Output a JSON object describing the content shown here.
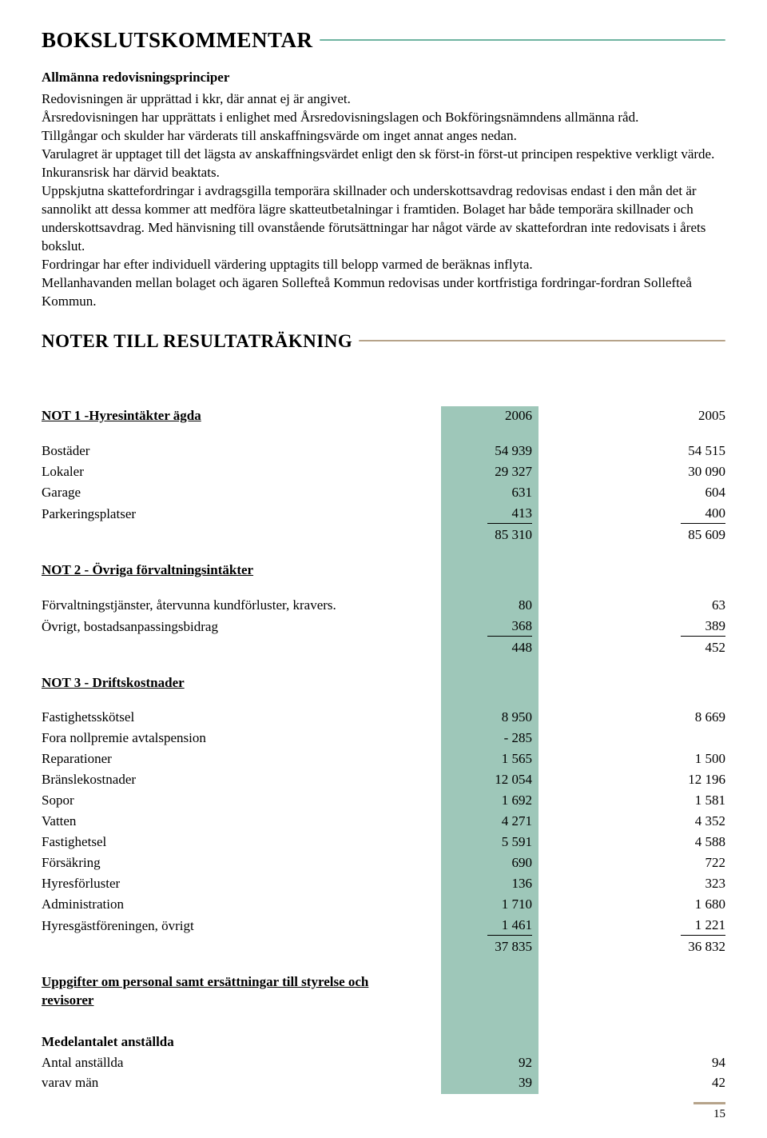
{
  "colors": {
    "teal_bar": "#9ec7b9",
    "teal_rule": "#6fb3a1",
    "brown_rule": "#b6a38a",
    "text": "#000000",
    "bg": "#ffffff"
  },
  "typography": {
    "body_fontsize": 17,
    "heading_main_fontsize": 27,
    "heading_sect_fontsize": 23
  },
  "heading_main": "BOKSLUTSKOMMENTAR",
  "subheading": "Allmänna redovisningsprinciper",
  "body_paragraph": "Redovisningen är upprättad i kkr, där annat ej är angivet.\nÅrsredovisningen har upprättats i enlighet med Årsredovisningslagen och Bokföringsnämndens allmänna råd.\nTillgångar och skulder har värderats till anskaffningsvärde om inget annat anges nedan.\nVarulagret är upptaget till det lägsta av anskaffningsvärdet enligt den sk först-in först-ut principen respektive verkligt värde. Inkuransrisk har därvid beaktats.\nUppskjutna skattefordringar i avdragsgilla temporära skillnader och underskottsavdrag redovisas endast i den mån det är sannolikt att dessa kommer att medföra lägre skatteutbetalningar i framtiden. Bolaget har både temporära skillnader och underskottsavdrag. Med hänvisning till ovanstående förutsättningar har något värde av skattefordran inte redovisats i årets bokslut.\nFordringar har efter individuell värdering upptagits till belopp varmed de beräknas inflyta.\nMellanhavanden mellan bolaget och ägaren Sollefteå Kommun redovisas under kortfristiga fordringar-fordran Sollefteå Kommun.",
  "heading_noter": "NOTER TILL RESULTATRÄKNING",
  "not1": {
    "title": "NOT 1 -Hyresintäkter ägda",
    "col1": "2006",
    "col2": "2005",
    "rows": [
      {
        "label": "Bostäder",
        "c1": "54 939",
        "c2": "54 515"
      },
      {
        "label": "Lokaler",
        "c1": "29 327",
        "c2": "30 090"
      },
      {
        "label": "Garage",
        "c1": "631",
        "c2": "604"
      },
      {
        "label": "Parkeringsplatser",
        "c1": "413",
        "c2": "400",
        "rule": true
      }
    ],
    "total": {
      "c1": "85 310",
      "c2": "85 609"
    }
  },
  "not2": {
    "title": "NOT 2 - Övriga förvaltningsintäkter",
    "rows": [
      {
        "label": "Förvaltningstjänster, återvunna kundförluster, kravers.",
        "c1": "80",
        "c2": "63"
      },
      {
        "label": "Övrigt, bostadsanpassingsbidrag",
        "c1": "368",
        "c2": "389",
        "rule": true
      }
    ],
    "total": {
      "c1": "448",
      "c2": "452"
    }
  },
  "not3": {
    "title": "NOT 3 - Driftskostnader",
    "rows": [
      {
        "label": "Fastighetsskötsel",
        "c1": "8 950",
        "c2": "8 669"
      },
      {
        "label": "Fora nollpremie avtalspension",
        "c1": "- 285",
        "c2": ""
      },
      {
        "label": "Reparationer",
        "c1": "1 565",
        "c2": "1 500"
      },
      {
        "label": "Bränslekostnader",
        "c1": "12 054",
        "c2": "12 196"
      },
      {
        "label": "Sopor",
        "c1": "1 692",
        "c2": "1 581"
      },
      {
        "label": "Vatten",
        "c1": "4 271",
        "c2": "4 352"
      },
      {
        "label": "Fastighetsel",
        "c1": "5 591",
        "c2": "4 588"
      },
      {
        "label": "Försäkring",
        "c1": "690",
        "c2": "722"
      },
      {
        "label": "Hyresförluster",
        "c1": "136",
        "c2": "323"
      },
      {
        "label": "Administration",
        "c1": "1 710",
        "c2": "1 680"
      },
      {
        "label": "Hyresgästföreningen, övrigt",
        "c1": "1 461",
        "c2": "1 221",
        "rule": true
      }
    ],
    "total": {
      "c1": "37 835",
      "c2": "36 832"
    }
  },
  "personal_heading": "Uppgifter om personal samt ersättningar till styrelse och revisorer",
  "medel_heading": "Medelantalet anställda",
  "medel_rows": [
    {
      "label": "Antal anställda",
      "c1": "92",
      "c2": "94"
    },
    {
      "label": "varav män",
      "c1": "39",
      "c2": "42"
    }
  ],
  "page_number": "15"
}
